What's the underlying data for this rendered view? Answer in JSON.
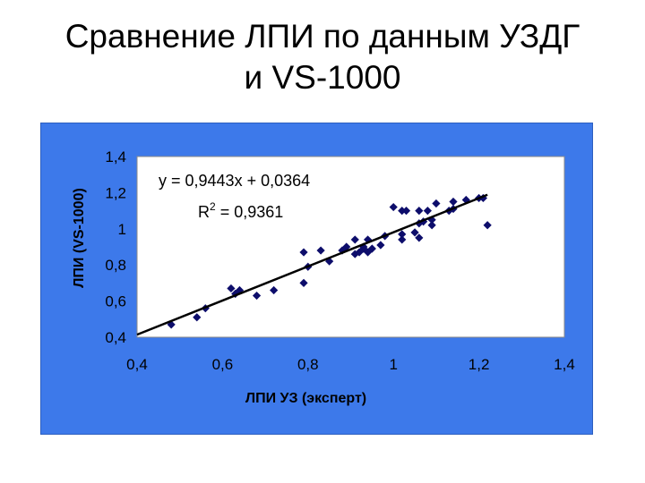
{
  "slide": {
    "title_line1": "Сравнение ЛПИ по данным УЗДГ",
    "title_line2": "и VS-1000"
  },
  "colors": {
    "panel_bg": "#3d79ea",
    "plot_bg": "#ffffff",
    "marker": "#0d0d6b",
    "trendline": "#000000"
  },
  "chart_data": {
    "type": "scatter",
    "xlabel": "ЛПИ УЗ (эксперт)",
    "ylabel": "ЛПИ (VS-1000)",
    "xlim": [
      0.4,
      1.4
    ],
    "ylim": [
      0.4,
      1.4
    ],
    "xticks": [
      "0,4",
      "0,6",
      "0,8",
      "1",
      "1,2",
      "1,4"
    ],
    "yticks": [
      "0,4",
      "0,6",
      "0,8",
      "1",
      "1,2",
      "1,4"
    ],
    "grid": false,
    "legend": "none",
    "marker": "diamond",
    "trendline": {
      "equation": "y = 0,9443x + 0,0364",
      "r2_label": "R",
      "r2_sup": "2",
      "r2_value": " = 0,9361",
      "slope": 0.9443,
      "intercept": 0.0364
    },
    "points": [
      [
        0.48,
        0.47
      ],
      [
        0.54,
        0.51
      ],
      [
        0.56,
        0.56
      ],
      [
        0.62,
        0.67
      ],
      [
        0.63,
        0.64
      ],
      [
        0.64,
        0.66
      ],
      [
        0.68,
        0.63
      ],
      [
        0.72,
        0.66
      ],
      [
        0.79,
        0.7
      ],
      [
        0.79,
        0.87
      ],
      [
        0.8,
        0.79
      ],
      [
        0.83,
        0.88
      ],
      [
        0.85,
        0.82
      ],
      [
        0.88,
        0.88
      ],
      [
        0.89,
        0.9
      ],
      [
        0.91,
        0.86
      ],
      [
        0.91,
        0.94
      ],
      [
        0.92,
        0.87
      ],
      [
        0.93,
        0.89
      ],
      [
        0.93,
        0.9
      ],
      [
        0.94,
        0.87
      ],
      [
        0.94,
        0.94
      ],
      [
        0.95,
        0.89
      ],
      [
        0.97,
        0.91
      ],
      [
        0.98,
        0.96
      ],
      [
        1.0,
        1.12
      ],
      [
        1.02,
        0.94
      ],
      [
        1.02,
        0.97
      ],
      [
        1.02,
        1.1
      ],
      [
        1.03,
        1.1
      ],
      [
        1.05,
        0.98
      ],
      [
        1.06,
        0.95
      ],
      [
        1.06,
        1.03
      ],
      [
        1.06,
        1.1
      ],
      [
        1.07,
        1.04
      ],
      [
        1.08,
        1.1
      ],
      [
        1.09,
        1.05
      ],
      [
        1.09,
        1.02
      ],
      [
        1.1,
        1.14
      ],
      [
        1.13,
        1.1
      ],
      [
        1.14,
        1.11
      ],
      [
        1.14,
        1.15
      ],
      [
        1.17,
        1.16
      ],
      [
        1.2,
        1.17
      ],
      [
        1.21,
        1.17
      ],
      [
        1.22,
        1.02
      ]
    ]
  }
}
